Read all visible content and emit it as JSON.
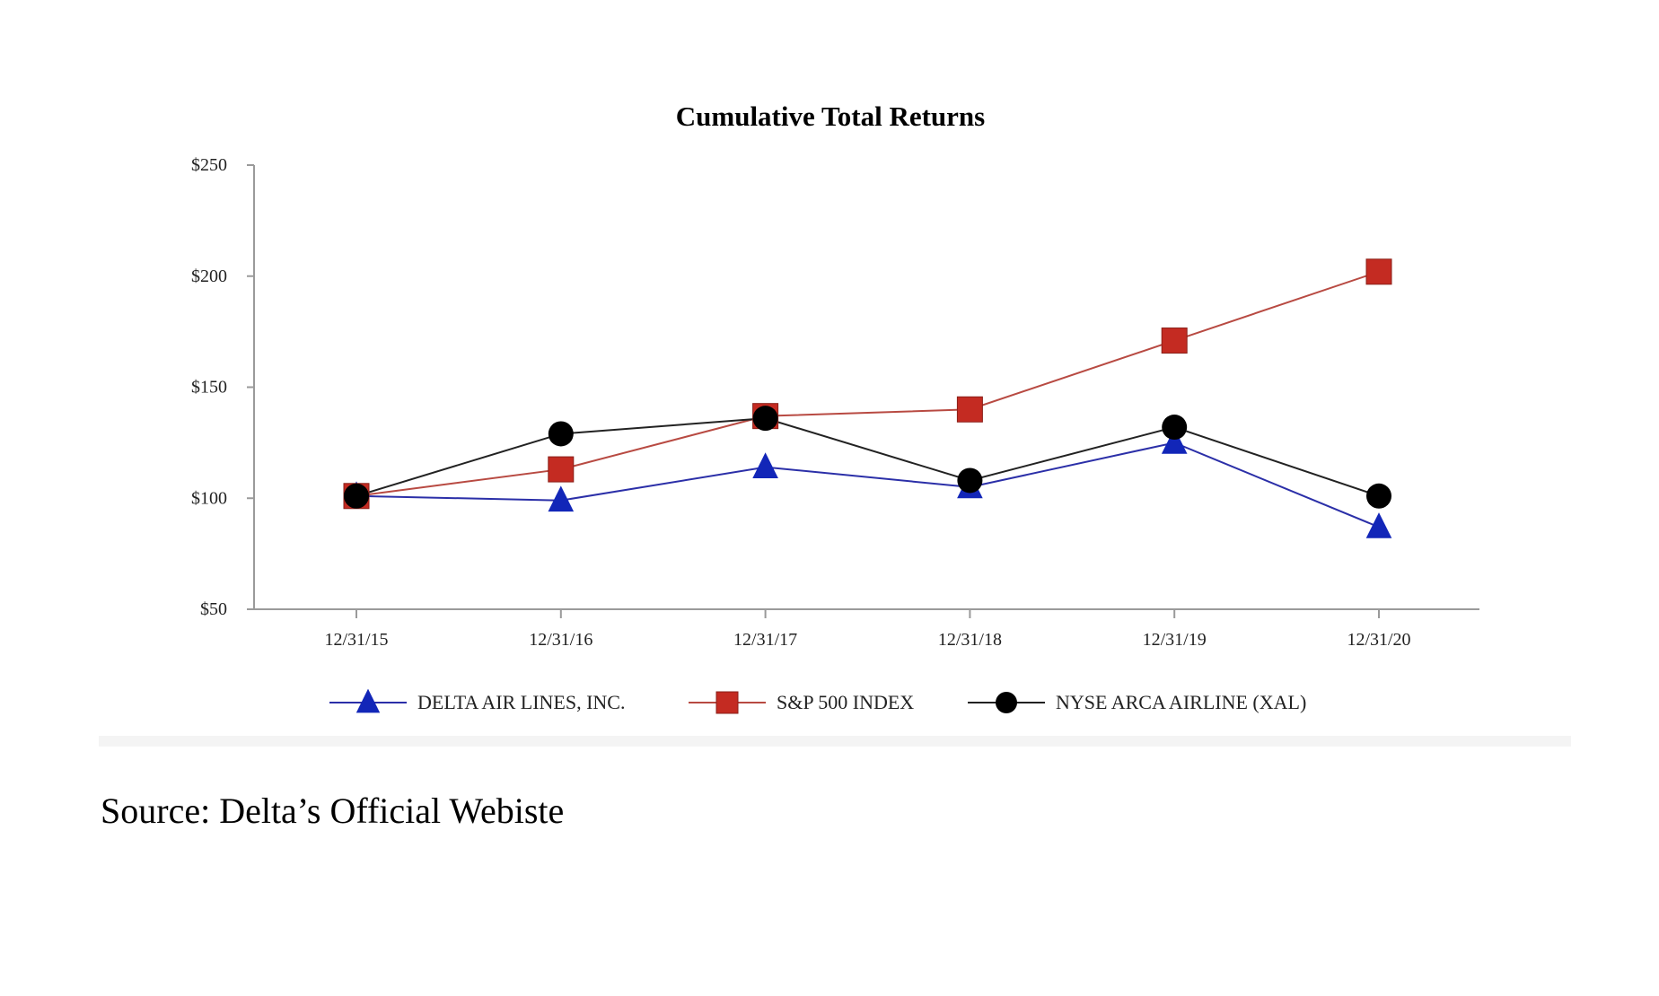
{
  "source_note": "Source: Delta’s Official Webiste",
  "chart_data": {
    "type": "line",
    "title": "Cumulative Total Returns",
    "xlabel": "",
    "ylabel": "",
    "categories": [
      "12/31/15",
      "12/31/16",
      "12/31/17",
      "12/31/18",
      "12/31/19",
      "12/31/20"
    ],
    "yticks": [
      "$50",
      "$100",
      "$150",
      "$200",
      "$250"
    ],
    "ylim": [
      50,
      250
    ],
    "grid": false,
    "legend_position": "bottom",
    "series": [
      {
        "name": "DELTA AIR LINES, INC.",
        "color": "#2b2fa8",
        "marker_color": "#1226b8",
        "marker": "triangle",
        "values": [
          101,
          99,
          114,
          105,
          125,
          87
        ]
      },
      {
        "name": "S&P 500 INDEX",
        "color": "#b84a42",
        "marker_color": "#c42b22",
        "marker": "square",
        "values": [
          101,
          113,
          137,
          140,
          171,
          202
        ]
      },
      {
        "name": "NYSE ARCA AIRLINE (XAL)",
        "color": "#222222",
        "marker_color": "#000000",
        "marker": "circle",
        "values": [
          101,
          129,
          136,
          108,
          132,
          101
        ]
      }
    ]
  }
}
